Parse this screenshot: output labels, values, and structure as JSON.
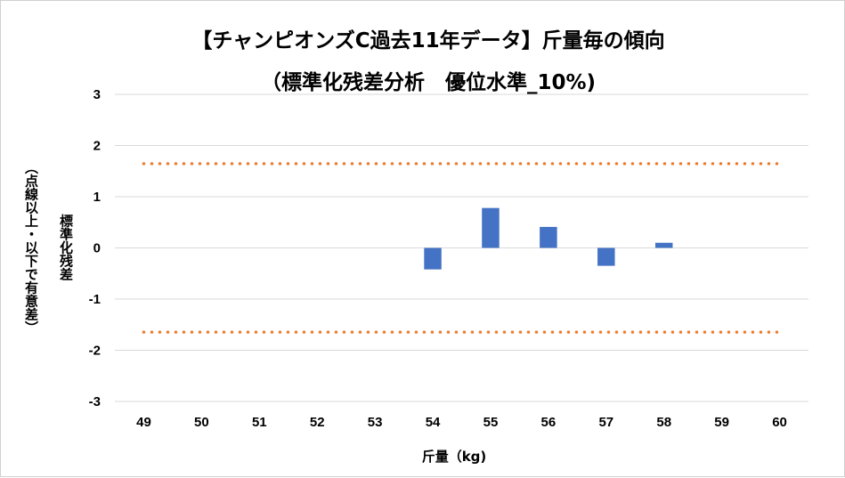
{
  "chart_data": {
    "type": "bar",
    "title": "【チャンピオンズC過去11年データ】斤量毎の傾向",
    "subtitle": "（標準化残差分析　優位水準_10%)",
    "xlabel": "斤量（kg)",
    "ylabel": "標準化残差",
    "ylabel_note": "（点線以上・以下で有意差）",
    "categories": [
      "49",
      "50",
      "51",
      "52",
      "53",
      "54",
      "55",
      "56",
      "57",
      "58",
      "59",
      "60"
    ],
    "series": [
      {
        "values": [
          null,
          null,
          null,
          null,
          null,
          -0.42,
          0.78,
          0.41,
          -0.35,
          0.1,
          null,
          null
        ]
      }
    ],
    "y_ticks": [
      "3",
      "2",
      "1",
      "0",
      "-1",
      "-2",
      "-3"
    ],
    "ylim": [
      -3,
      3
    ],
    "threshold_lines": [
      1.645,
      -1.645
    ],
    "grid": "horizontal",
    "colors": {
      "bar": "#4472C4",
      "threshold": "#ED7D31",
      "grid": "#D9D9D9"
    }
  }
}
